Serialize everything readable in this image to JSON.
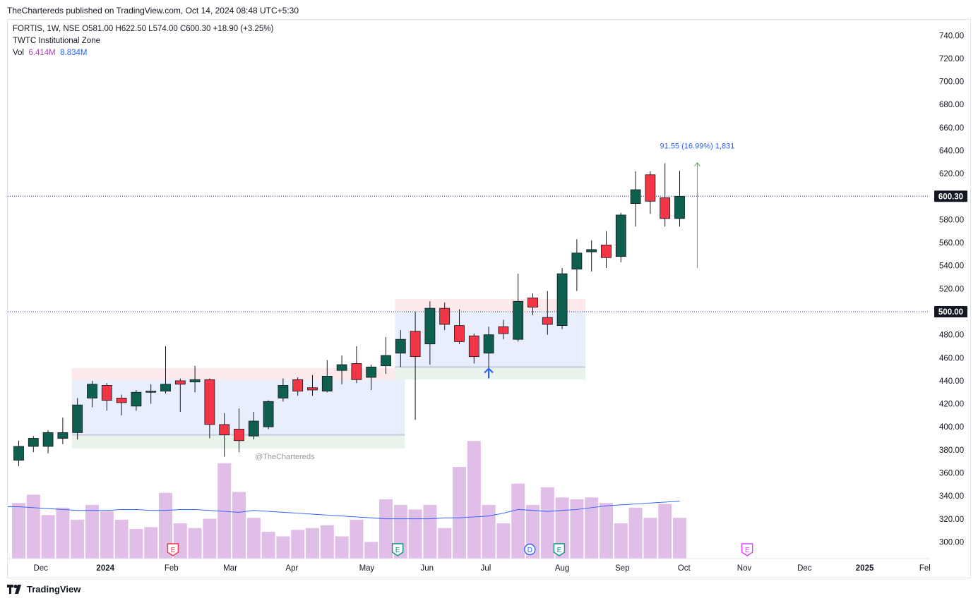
{
  "publisher": "TheChartereds published on TradingView.com, Oct 14, 2024 08:48 UTC+5:30",
  "legend": {
    "symbol_line": "FORTIS, 1W, NSE  O581.00  H622.50  L574.00  C600.30  +18.90 (+3.25%)",
    "indicator": "TWTC Institutional Zone",
    "vol_label": "Vol",
    "vol_value1": "6.414M",
    "vol_value2": "8.834M"
  },
  "watermark": "@TheChartereds",
  "footer_brand": "TradingView",
  "colors": {
    "up": "#0f5f4f",
    "down": "#f23645",
    "volume": "#e1bee7",
    "vol_ma": "#2962ff",
    "measure": "#4caf50",
    "measure_text": "#2962ff"
  },
  "chart_data": {
    "type": "candlestick",
    "ylim": [
      290,
      750
    ],
    "y_ticks": [
      300,
      320,
      340,
      360,
      380,
      400,
      420,
      440,
      460,
      480,
      500,
      520,
      540,
      560,
      580,
      600,
      620,
      640,
      660,
      680,
      700,
      720,
      740
    ],
    "x_ticks": [
      {
        "label": "Dec",
        "bar": 1.5
      },
      {
        "label": "2024",
        "bar": 5.9
      },
      {
        "label": "Feb",
        "bar": 10.4
      },
      {
        "label": "Mar",
        "bar": 14.4
      },
      {
        "label": "Apr",
        "bar": 18.6
      },
      {
        "label": "May",
        "bar": 23.7
      },
      {
        "label": "Jun",
        "bar": 27.8
      },
      {
        "label": "Jul",
        "bar": 31.8
      },
      {
        "label": "Aug",
        "bar": 37.0
      },
      {
        "label": "Sep",
        "bar": 41.1
      },
      {
        "label": "Oct",
        "bar": 45.3
      },
      {
        "label": "Nov",
        "bar": 49.4
      },
      {
        "label": "Dec",
        "bar": 53.5
      },
      {
        "label": "2025",
        "bar": 57.6
      },
      {
        "label": "Fel",
        "bar": 61.7
      }
    ],
    "price_tags": [
      {
        "label": "600.30",
        "value": 600.3
      },
      {
        "label": "500.00",
        "value": 500.0
      }
    ],
    "candles": [
      {
        "o": 371,
        "h": 388,
        "l": 366,
        "c": 383
      },
      {
        "o": 383,
        "h": 392,
        "l": 378,
        "c": 390
      },
      {
        "o": 383,
        "h": 397,
        "l": 377,
        "c": 395
      },
      {
        "o": 390,
        "h": 408,
        "l": 385,
        "c": 395
      },
      {
        "o": 395,
        "h": 425,
        "l": 389,
        "c": 419
      },
      {
        "o": 425,
        "h": 440,
        "l": 417,
        "c": 437
      },
      {
        "o": 436,
        "h": 438,
        "l": 414,
        "c": 423
      },
      {
        "o": 425,
        "h": 428,
        "l": 410,
        "c": 421
      },
      {
        "o": 418,
        "h": 432,
        "l": 414,
        "c": 430
      },
      {
        "o": 430,
        "h": 437,
        "l": 420,
        "c": 431
      },
      {
        "o": 431,
        "h": 470,
        "l": 429,
        "c": 437
      },
      {
        "o": 440,
        "h": 442,
        "l": 413,
        "c": 437
      },
      {
        "o": 439,
        "h": 453,
        "l": 430,
        "c": 441
      },
      {
        "o": 441,
        "h": 442,
        "l": 390,
        "c": 402
      },
      {
        "o": 402,
        "h": 412,
        "l": 374,
        "c": 393
      },
      {
        "o": 398,
        "h": 416,
        "l": 378,
        "c": 388
      },
      {
        "o": 392,
        "h": 413,
        "l": 389,
        "c": 405
      },
      {
        "o": 400,
        "h": 423,
        "l": 398,
        "c": 422
      },
      {
        "o": 425,
        "h": 442,
        "l": 422,
        "c": 436
      },
      {
        "o": 441,
        "h": 443,
        "l": 427,
        "c": 431
      },
      {
        "o": 434,
        "h": 445,
        "l": 427,
        "c": 432
      },
      {
        "o": 431,
        "h": 458,
        "l": 430,
        "c": 444
      },
      {
        "o": 449,
        "h": 462,
        "l": 437,
        "c": 454
      },
      {
        "o": 455,
        "h": 470,
        "l": 438,
        "c": 441
      },
      {
        "o": 443,
        "h": 454,
        "l": 432,
        "c": 452
      },
      {
        "o": 453,
        "h": 478,
        "l": 446,
        "c": 462
      },
      {
        "o": 464,
        "h": 484,
        "l": 452,
        "c": 476
      },
      {
        "o": 483,
        "h": 500,
        "l": 406,
        "c": 461
      },
      {
        "o": 472,
        "h": 509,
        "l": 454,
        "c": 503
      },
      {
        "o": 503,
        "h": 508,
        "l": 484,
        "c": 489
      },
      {
        "o": 488,
        "h": 502,
        "l": 472,
        "c": 474
      },
      {
        "o": 479,
        "h": 481,
        "l": 455,
        "c": 461
      },
      {
        "o": 464,
        "h": 487,
        "l": 451,
        "c": 480
      },
      {
        "o": 487,
        "h": 493,
        "l": 476,
        "c": 481
      },
      {
        "o": 476,
        "h": 533,
        "l": 474,
        "c": 509
      },
      {
        "o": 512,
        "h": 516,
        "l": 497,
        "c": 504
      },
      {
        "o": 495,
        "h": 518,
        "l": 480,
        "c": 489
      },
      {
        "o": 488,
        "h": 538,
        "l": 485,
        "c": 533
      },
      {
        "o": 537,
        "h": 563,
        "l": 518,
        "c": 551
      },
      {
        "o": 552,
        "h": 562,
        "l": 535,
        "c": 554
      },
      {
        "o": 558,
        "h": 570,
        "l": 538,
        "c": 547
      },
      {
        "o": 548,
        "h": 586,
        "l": 543,
        "c": 584
      },
      {
        "o": 594,
        "h": 622,
        "l": 574,
        "c": 606
      },
      {
        "o": 619,
        "h": 622,
        "l": 585,
        "c": 596
      },
      {
        "o": 599,
        "h": 629,
        "l": 574,
        "c": 581
      },
      {
        "o": 581,
        "h": 622.5,
        "l": 574,
        "c": 600.3
      }
    ],
    "volume_heights_px": [],
    "volume": [
      6.0,
      6.9,
      4.7,
      5.5,
      4.2,
      5.8,
      5.1,
      4.2,
      3.2,
      3.4,
      7.1,
      3.8,
      3.3,
      4.3,
      10.3,
      7.2,
      4.4,
      2.9,
      2.4,
      3.1,
      3.3,
      3.6,
      2.4,
      4.2,
      1.8,
      6.4,
      5.8,
      5.3,
      5.8,
      3.3,
      9.9,
      12.7,
      5.8,
      3.8,
      8.1,
      5.8,
      7.7,
      6.6,
      6.4,
      6.6,
      6.0,
      3.8,
      5.5,
      4.4,
      5.9,
      4.4
    ],
    "volume_ma": [
      5.6,
      5.5,
      5.4,
      5.3,
      5.2,
      5.2,
      5.2,
      5.3,
      5.3,
      5.2,
      5.2,
      5.3,
      5.3,
      5.2,
      5.1,
      5.0,
      5.2,
      5.1,
      5.0,
      4.9,
      4.8,
      4.7,
      4.6,
      4.5,
      4.4,
      4.3,
      4.3,
      4.3,
      4.3,
      4.4,
      4.4,
      4.5,
      4.6,
      4.9,
      5.3,
      5.2,
      5.1,
      5.2,
      5.3,
      5.5,
      5.7,
      5.8,
      5.9,
      6.0,
      6.1,
      6.2
    ],
    "volume_axis_max": 24,
    "zones": [
      {
        "from_bar": 4,
        "to_bar": 25.9,
        "supply_low": 441,
        "supply_high": 451,
        "body_low": 393,
        "body_high": 441,
        "demand_low": 381,
        "demand_high": 393
      },
      {
        "from_bar": 26,
        "to_bar": 38.2,
        "supply_low": 500,
        "supply_high": 511,
        "body_low": 452,
        "body_high": 500,
        "demand_low": 441,
        "demand_high": 452
      }
    ],
    "measure": {
      "bar": 46.2,
      "from": 538,
      "to": 629.5,
      "label": "91.55 (16.99%) 1,831"
    },
    "events": [
      {
        "bar": 10.5,
        "letter": "E",
        "color": "#f23645"
      },
      {
        "bar": 25.8,
        "letter": "E",
        "color": "#089981"
      },
      {
        "bar": 34.8,
        "letter": "D",
        "color": "#2962ff"
      },
      {
        "bar": 36.8,
        "letter": "E",
        "color": "#089981"
      },
      {
        "bar": 49.6,
        "letter": "E",
        "color": "#e040fb"
      }
    ],
    "signal_arrow": {
      "bar": 32,
      "price": 447
    },
    "grid": false
  }
}
